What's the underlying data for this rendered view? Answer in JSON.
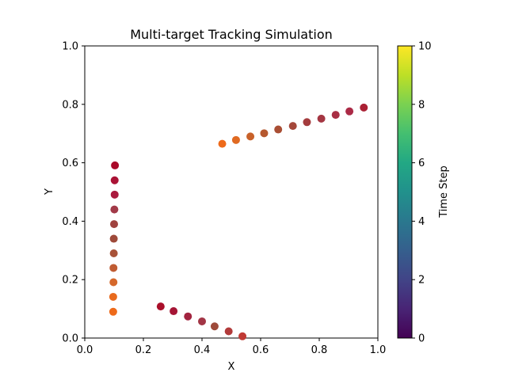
{
  "chart_data": {
    "type": "scatter",
    "title": "Multi-target Tracking Simulation",
    "xlabel": "X",
    "ylabel": "Y",
    "xlim": [
      0,
      1
    ],
    "ylim": [
      0,
      1
    ],
    "xticks": [
      "0.0",
      "0.2",
      "0.4",
      "0.6",
      "0.8",
      "1.0"
    ],
    "yticks": [
      "0.0",
      "0.2",
      "0.4",
      "0.6",
      "0.8",
      "1.0"
    ],
    "grid": false,
    "series": [
      {
        "points": [
          {
            "x": 0.469,
            "y": 0.665,
            "c": "#ee6a1a"
          },
          {
            "x": 0.516,
            "y": 0.678,
            "c": "#e06a22"
          },
          {
            "x": 0.565,
            "y": 0.69,
            "c": "#c8612a"
          },
          {
            "x": 0.612,
            "y": 0.701,
            "c": "#b5582f"
          },
          {
            "x": 0.66,
            "y": 0.714,
            "c": "#a94e34"
          },
          {
            "x": 0.71,
            "y": 0.726,
            "c": "#a4473a"
          },
          {
            "x": 0.758,
            "y": 0.739,
            "c": "#a43c3e"
          },
          {
            "x": 0.807,
            "y": 0.751,
            "c": "#a43642"
          },
          {
            "x": 0.856,
            "y": 0.764,
            "c": "#a82f44"
          },
          {
            "x": 0.903,
            "y": 0.776,
            "c": "#ab2a46"
          },
          {
            "x": 0.952,
            "y": 0.789,
            "c": "#aa2034"
          }
        ]
      },
      {
        "points": [
          {
            "x": 0.097,
            "y": 0.09,
            "c": "#ee6a1a"
          },
          {
            "x": 0.097,
            "y": 0.141,
            "c": "#e86a1d"
          },
          {
            "x": 0.098,
            "y": 0.191,
            "c": "#d5682b"
          },
          {
            "x": 0.098,
            "y": 0.24,
            "c": "#c05c33"
          },
          {
            "x": 0.099,
            "y": 0.29,
            "c": "#a85238"
          },
          {
            "x": 0.099,
            "y": 0.34,
            "c": "#9e4a3a"
          },
          {
            "x": 0.1,
            "y": 0.39,
            "c": "#9f423e"
          },
          {
            "x": 0.101,
            "y": 0.44,
            "c": "#a23a48"
          },
          {
            "x": 0.102,
            "y": 0.491,
            "c": "#aa1a3e"
          },
          {
            "x": 0.102,
            "y": 0.54,
            "c": "#aa1235"
          },
          {
            "x": 0.103,
            "y": 0.591,
            "c": "#aa0a2a"
          }
        ]
      },
      {
        "points": [
          {
            "x": 0.259,
            "y": 0.108,
            "c": "#aa0f2a"
          },
          {
            "x": 0.303,
            "y": 0.092,
            "c": "#a51535"
          },
          {
            "x": 0.352,
            "y": 0.074,
            "c": "#a2243f"
          },
          {
            "x": 0.4,
            "y": 0.057,
            "c": "#a23545"
          },
          {
            "x": 0.443,
            "y": 0.04,
            "c": "#9e4a3a"
          },
          {
            "x": 0.491,
            "y": 0.023,
            "c": "#b23b3b"
          },
          {
            "x": 0.538,
            "y": 0.006,
            "c": "#c03a34"
          }
        ]
      }
    ],
    "colorbar": {
      "label": "Time Step",
      "range": [
        0,
        10
      ],
      "ticks": [
        "0",
        "2",
        "4",
        "6",
        "8",
        "10"
      ],
      "colormap": "viridis",
      "stops": [
        "#440154",
        "#482475",
        "#414487",
        "#355f8d",
        "#2a788e",
        "#21918c",
        "#22a884",
        "#44bf70",
        "#7ad151",
        "#bddf26",
        "#fde725"
      ]
    },
    "marker_size": 5
  }
}
